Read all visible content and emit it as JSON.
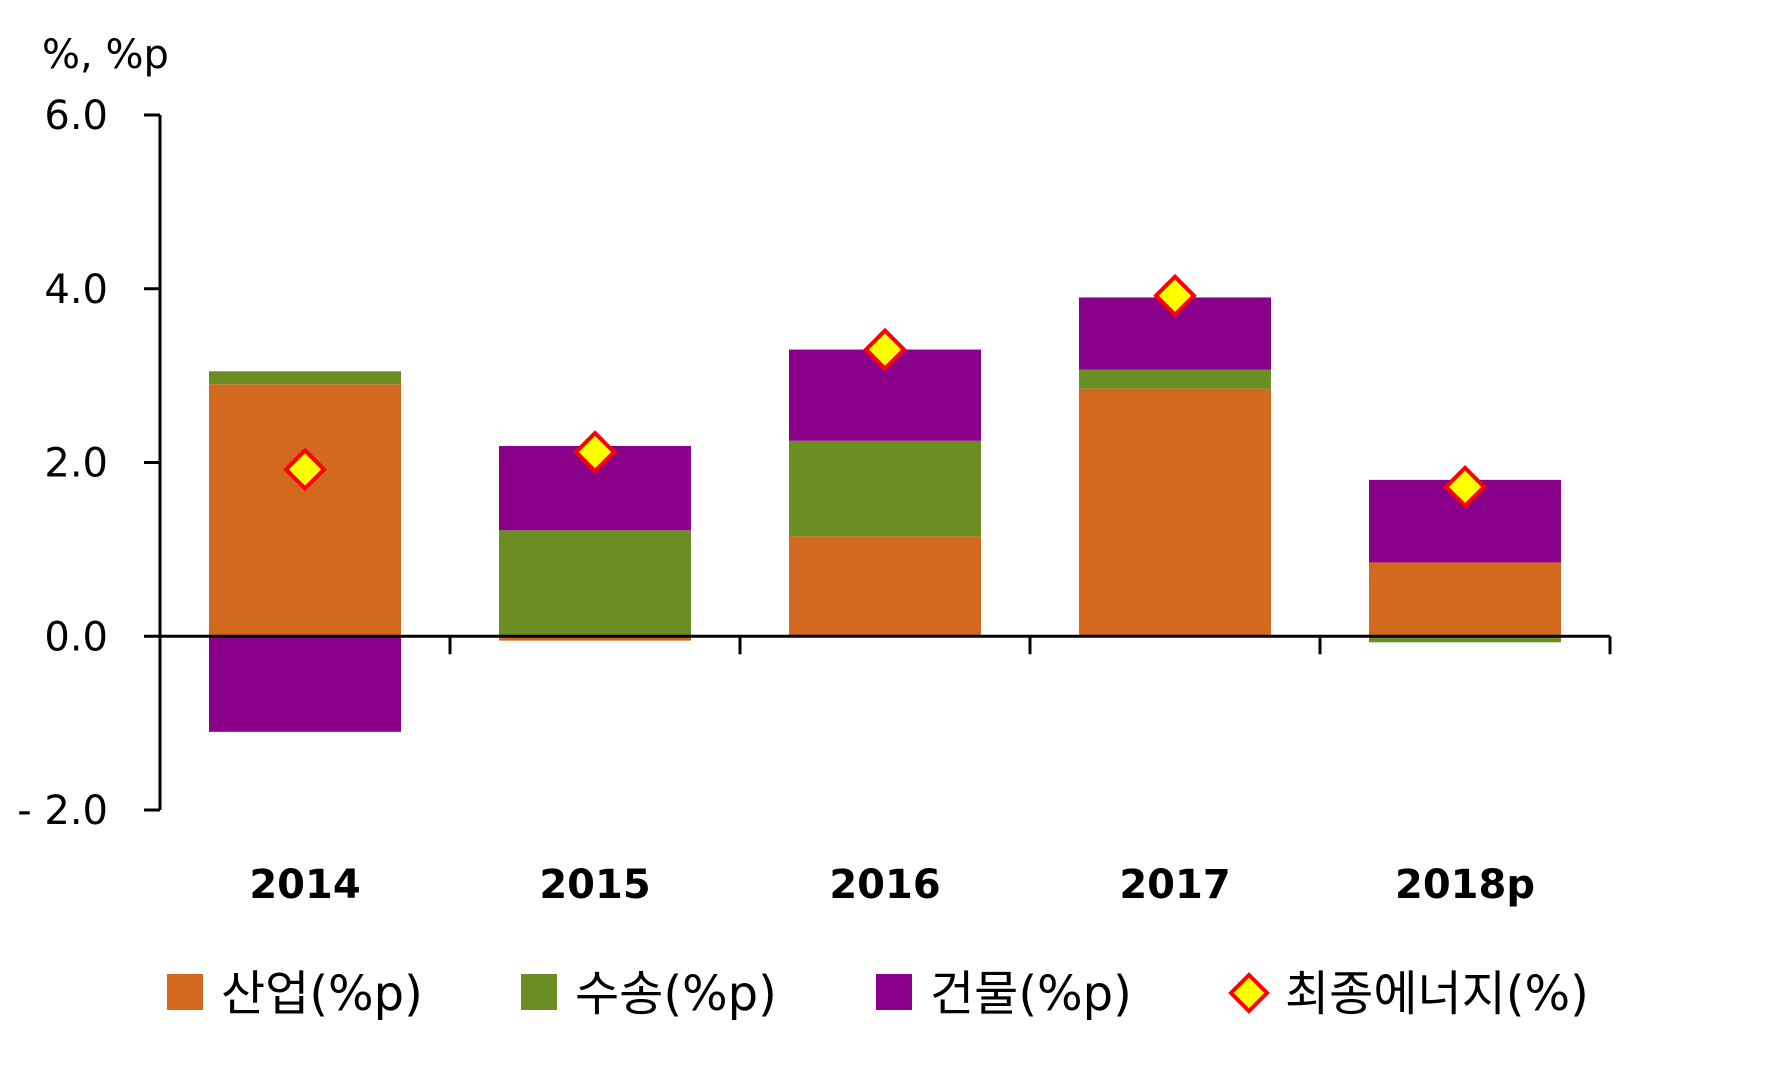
{
  "chart_data": {
    "type": "bar",
    "stacked": true,
    "unit_label": "%, %p",
    "categories": [
      "2014",
      "2015",
      "2016",
      "2017",
      "2018p"
    ],
    "series": [
      {
        "name": "산업(%p)",
        "color": "#D2691E",
        "values": [
          2.9,
          -0.05,
          1.15,
          2.85,
          0.85
        ]
      },
      {
        "name": "수송(%p)",
        "color": "#6B8E23",
        "values": [
          0.15,
          1.22,
          1.1,
          0.22,
          -0.07
        ]
      },
      {
        "name": "건물(%p)",
        "color": "#8B008B",
        "values": [
          -1.1,
          0.97,
          1.05,
          0.83,
          0.95
        ]
      }
    ],
    "markers": {
      "name": "최종에너지(%)",
      "fill": "#FFFF00",
      "stroke": "#FF0000",
      "values": [
        1.92,
        2.12,
        3.3,
        3.92,
        1.72
      ]
    },
    "ylim": [
      -2.0,
      6.0
    ],
    "yticks": [
      6.0,
      4.0,
      2.0,
      0.0,
      -2.0
    ],
    "ytick_labels": [
      "6.0",
      "4.0",
      "2.0",
      "0.0",
      "- 2.0"
    ],
    "grid": false,
    "legend_position": "bottom"
  }
}
